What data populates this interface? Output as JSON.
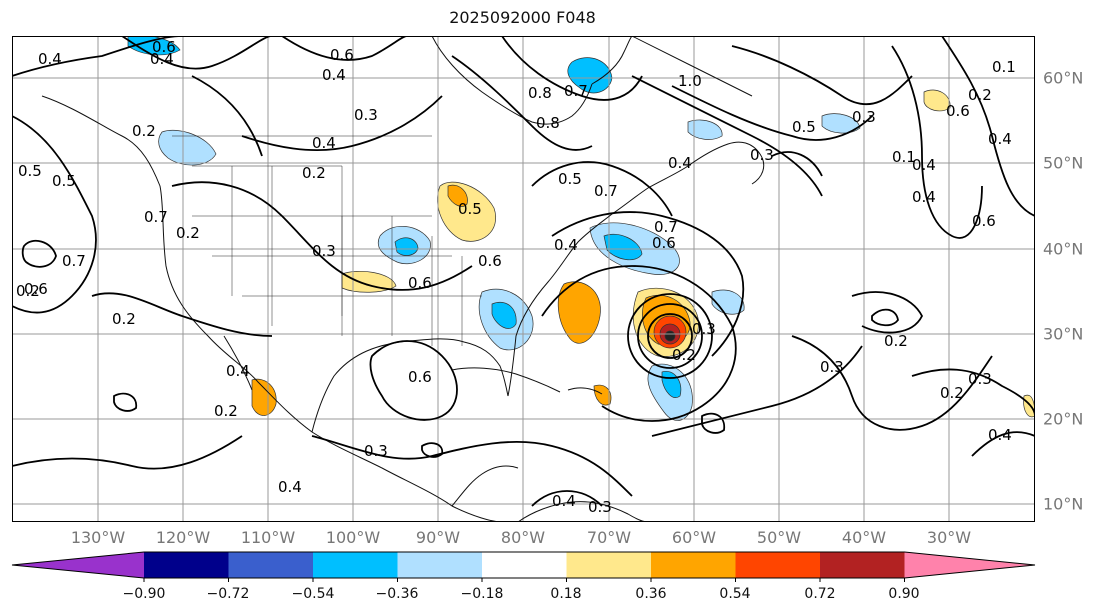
{
  "title": "2025092000 F048",
  "map": {
    "projection": "equidistant cylindrical",
    "lon_range": [
      -140,
      -20
    ],
    "lat_range": [
      8,
      65
    ],
    "graticule": "10 degree",
    "longitude_labels": [
      "130°W",
      "120°W",
      "110°W",
      "100°W",
      "90°W",
      "80°W",
      "70°W",
      "60°W",
      "50°W",
      "40°W",
      "30°W"
    ],
    "latitude_labels": [
      "60°N",
      "50°N",
      "40°N",
      "30°N",
      "20°N",
      "10°N"
    ],
    "contour_labels": [
      "0.4",
      "0.6",
      "0.4",
      "0.6",
      "0.4",
      "0.2",
      "0.3",
      "0.4",
      "0.8",
      "0.7",
      "0.8",
      "1.0",
      "0.5",
      "0.4",
      "0.3",
      "0.2",
      "0.2",
      "0.3",
      "0.5",
      "0.6",
      "0.7",
      "0.6",
      "0.2",
      "0.6",
      "0.7",
      "0.5",
      "0.4",
      "0.5",
      "0.6",
      "0.3",
      "0.2",
      "0.4",
      "0.4",
      "0.3",
      "0.2",
      "0.2",
      "0.6",
      "0.3",
      "0.4",
      "0.6",
      "0.1",
      "0.7",
      "0.4",
      "0.2",
      "0.3",
      "0.4",
      "0.3",
      "0.2",
      "0.6",
      "0.3",
      "0.1",
      "0.4",
      "0.5",
      "0.2",
      "0.4",
      "0.7"
    ]
  },
  "colorbar": {
    "ticks": [
      "−0.90",
      "−0.72",
      "−0.54",
      "−0.36",
      "−0.18",
      "0.18",
      "0.36",
      "0.54",
      "0.72",
      "0.90"
    ],
    "colors": [
      "#9932cc",
      "#00008b",
      "#3a5fcd",
      "#00bfff",
      "#b0e0ff",
      "#ffffff",
      "#ffe88c",
      "#ffa500",
      "#ff4500",
      "#b22222",
      "#ff82ab"
    ]
  }
}
